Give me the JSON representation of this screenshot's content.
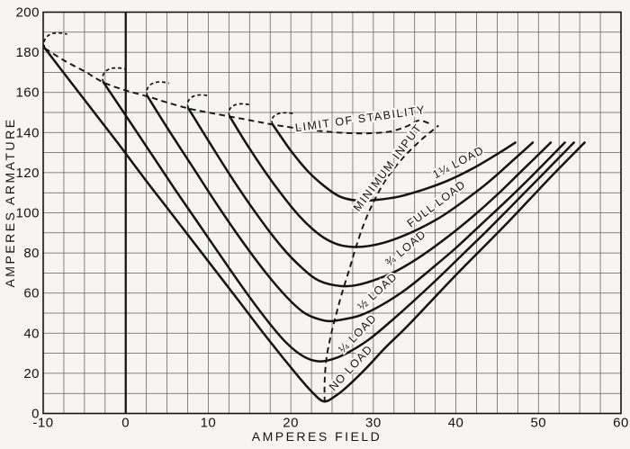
{
  "figure": {
    "background": "#f6f5f1",
    "ink": "#141414",
    "grid_color": "#3a3a3a"
  },
  "chart_data": {
    "type": "line",
    "title": "",
    "xlabel": "AMPERES FIELD",
    "ylabel": "AMPERES ARMATURE",
    "xlim": [
      -10,
      60
    ],
    "ylim": [
      0,
      200
    ],
    "x_ticks": [
      -10,
      0,
      10,
      20,
      30,
      40,
      50,
      60
    ],
    "y_ticks": [
      0,
      20,
      40,
      60,
      80,
      100,
      120,
      140,
      160,
      180,
      200
    ],
    "x_grid_step": 2.5,
    "y_grid_step": 10,
    "grid": true,
    "zero_field_axis": true,
    "series": [
      {
        "name": "no-load",
        "style": "solid",
        "points": [
          [
            -9.8,
            182
          ],
          [
            -7,
            167
          ],
          [
            -4,
            151
          ],
          [
            -1,
            135
          ],
          [
            2,
            118.5
          ],
          [
            5,
            102.5
          ],
          [
            8,
            86.5
          ],
          [
            11,
            70.5
          ],
          [
            14,
            54.5
          ],
          [
            16.5,
            41
          ],
          [
            19,
            28
          ],
          [
            21,
            18
          ],
          [
            22.5,
            11
          ],
          [
            24,
            6
          ],
          [
            25.5,
            9
          ],
          [
            27,
            14
          ],
          [
            29,
            22
          ],
          [
            31.5,
            33
          ],
          [
            34,
            43
          ],
          [
            37,
            56
          ],
          [
            40,
            69
          ],
          [
            43,
            81.5
          ],
          [
            46,
            94
          ],
          [
            49,
            107
          ],
          [
            52,
            120
          ],
          [
            55.6,
            135
          ]
        ],
        "minimum": [
          24,
          6
        ],
        "hook": {
          "run": 2.7,
          "rise": 8.5
        },
        "label": {
          "text": "NO LOAD",
          "x": 27.6,
          "y": 21.5,
          "angle": -47
        }
      },
      {
        "name": "quarter-load",
        "style": "solid",
        "points": [
          [
            -2.7,
            165
          ],
          [
            0,
            148.5
          ],
          [
            3,
            130
          ],
          [
            6,
            111.5
          ],
          [
            9,
            93.5
          ],
          [
            12,
            75.5
          ],
          [
            15,
            58
          ],
          [
            17.5,
            44.5
          ],
          [
            19.5,
            35
          ],
          [
            21.5,
            28.5
          ],
          [
            23.3,
            26
          ],
          [
            25,
            27
          ],
          [
            27,
            30.5
          ],
          [
            29.5,
            37
          ],
          [
            32,
            45.5
          ],
          [
            35,
            56.5
          ],
          [
            38,
            68
          ],
          [
            41,
            80
          ],
          [
            44,
            92
          ],
          [
            47,
            104.5
          ],
          [
            50,
            117
          ],
          [
            54.3,
            135
          ]
        ],
        "minimum": [
          23.3,
          26
        ],
        "hook": {
          "run": 2.7,
          "rise": 8
        },
        "label": {
          "text": "¼ LOAD",
          "x": 28.4,
          "y": 38.5,
          "angle": -46
        }
      },
      {
        "name": "half-load",
        "style": "solid",
        "points": [
          [
            2.65,
            158
          ],
          [
            5,
            142.5
          ],
          [
            8,
            123.5
          ],
          [
            11,
            104.5
          ],
          [
            14,
            86.5
          ],
          [
            17,
            70
          ],
          [
            19.5,
            58
          ],
          [
            21.5,
            50.5
          ],
          [
            23,
            47.5
          ],
          [
            24.6,
            46
          ],
          [
            26.5,
            47
          ],
          [
            28.5,
            49
          ],
          [
            31,
            54
          ],
          [
            34,
            62
          ],
          [
            37,
            72
          ],
          [
            40,
            82.5
          ],
          [
            43,
            94
          ],
          [
            46,
            105.5
          ],
          [
            49,
            117.5
          ],
          [
            53.2,
            135
          ]
        ],
        "minimum": [
          24.6,
          46
        ],
        "hook": {
          "run": 2.6,
          "rise": 8
        },
        "label": {
          "text": "½ LOAD",
          "x": 30.8,
          "y": 59.5,
          "angle": -43
        }
      },
      {
        "name": "three-quarter-load",
        "style": "solid",
        "points": [
          [
            7.6,
            152
          ],
          [
            10,
            136
          ],
          [
            13,
            116.5
          ],
          [
            16,
            98.5
          ],
          [
            19,
            82.5
          ],
          [
            21.5,
            72
          ],
          [
            23.5,
            66
          ],
          [
            26,
            63.5
          ],
          [
            28,
            64
          ],
          [
            30.5,
            67
          ],
          [
            33,
            71.5
          ],
          [
            36,
            79
          ],
          [
            39,
            88
          ],
          [
            42,
            98
          ],
          [
            45,
            109
          ],
          [
            48,
            121
          ],
          [
            51.5,
            135
          ]
        ],
        "minimum": [
          26,
          63.5
        ],
        "hook": {
          "run": 2.6,
          "rise": 7.5
        },
        "label": {
          "text": "¾ LOAD",
          "x": 34.2,
          "y": 81,
          "angle": -40
        }
      },
      {
        "name": "full-load",
        "style": "solid",
        "points": [
          [
            12.6,
            148
          ],
          [
            15,
            132
          ],
          [
            18,
            114
          ],
          [
            21,
            98.5
          ],
          [
            23.5,
            89
          ],
          [
            25.5,
            84.5
          ],
          [
            27.4,
            83
          ],
          [
            29.5,
            83.5
          ],
          [
            32,
            86
          ],
          [
            35,
            91
          ],
          [
            38,
            97.5
          ],
          [
            41,
            106
          ],
          [
            44,
            115.5
          ],
          [
            47,
            126.5
          ],
          [
            49.3,
            135
          ]
        ],
        "minimum": [
          27.4,
          83
        ],
        "hook": {
          "run": 2.5,
          "rise": 7
        },
        "label": {
          "text": "FULL LOAD",
          "x": 37.9,
          "y": 103,
          "angle": -37
        }
      },
      {
        "name": "one-and-quarter-load",
        "style": "solid",
        "points": [
          [
            17.8,
            144
          ],
          [
            20,
            131
          ],
          [
            22,
            121
          ],
          [
            24,
            113.5
          ],
          [
            26,
            108
          ],
          [
            28.3,
            106
          ],
          [
            30.5,
            106.5
          ],
          [
            33,
            108
          ],
          [
            36,
            111.5
          ],
          [
            39,
            116
          ],
          [
            42,
            122
          ],
          [
            44.5,
            128
          ],
          [
            47.2,
            135
          ]
        ],
        "minimum": [
          28.3,
          106
        ],
        "hook": {
          "run": 2.6,
          "rise": 6.5
        },
        "label": {
          "text": "1¼ LOAD",
          "x": 40.5,
          "y": 123.5,
          "angle": -28
        }
      }
    ],
    "guides": [
      {
        "name": "limit-of-stability",
        "style": "dashed",
        "points": [
          [
            -9.8,
            182
          ],
          [
            -7.5,
            176
          ],
          [
            -5,
            170.5
          ],
          [
            -2.7,
            165
          ],
          [
            0,
            161
          ],
          [
            2.65,
            158
          ],
          [
            5,
            155
          ],
          [
            7.6,
            152
          ],
          [
            10,
            150
          ],
          [
            12.6,
            148
          ],
          [
            15.2,
            146
          ],
          [
            17.8,
            144
          ],
          [
            20.5,
            142.3
          ],
          [
            23.5,
            140.8
          ],
          [
            26.5,
            139.8
          ],
          [
            29.5,
            139.6
          ],
          [
            32,
            140.5
          ],
          [
            34,
            143
          ],
          [
            35.5,
            146
          ],
          [
            36.8,
            144.5
          ]
        ],
        "label": {
          "text": "LIMIT OF STABILITY",
          "x": 28.5,
          "y": 145,
          "angle": -8
        }
      },
      {
        "name": "minimum-input",
        "style": "dashed",
        "points": [
          [
            24.1,
            5.5
          ],
          [
            24.1,
            16
          ],
          [
            24.3,
            27
          ],
          [
            24.8,
            38
          ],
          [
            25.4,
            48
          ],
          [
            26.2,
            60
          ],
          [
            27.1,
            72
          ],
          [
            27.9,
            83
          ],
          [
            28.9,
            95
          ],
          [
            30.1,
            106
          ],
          [
            31.6,
            117
          ],
          [
            33.5,
            127
          ],
          [
            35.7,
            136
          ],
          [
            37.9,
            143.5
          ]
        ],
        "label": {
          "text": "MINIMUM INPUT",
          "x": 32.1,
          "y": 121.5,
          "angle": -53
        }
      }
    ]
  }
}
